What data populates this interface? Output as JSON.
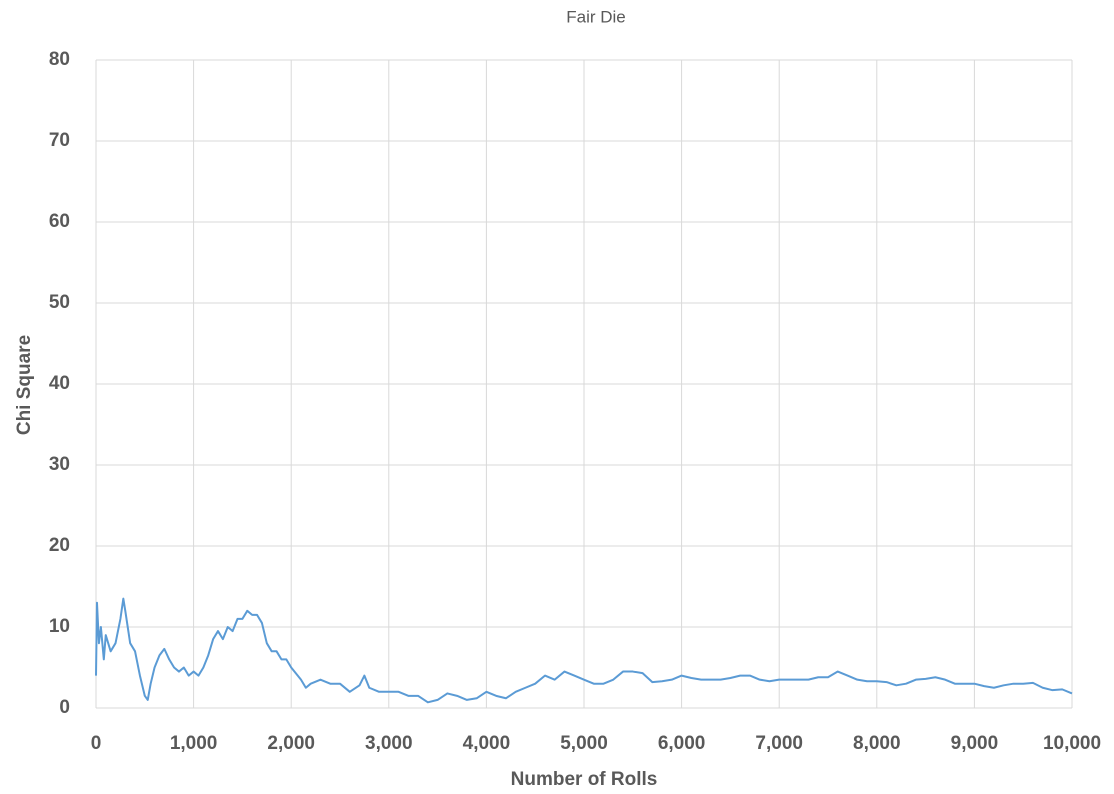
{
  "chart_data": {
    "type": "line",
    "title": "Fair Die",
    "x_label": "Number of Rolls",
    "y_label": "Chi Square",
    "color": "#5b9bd5",
    "grid": true,
    "xlim": [
      0,
      10000
    ],
    "ylim": [
      0,
      80
    ],
    "xticks": [
      0,
      {
        "value": 1000,
        "label": "1,000"
      },
      {
        "value": 2000,
        "label": "2,000"
      },
      {
        "value": 3000,
        "label": "3,000"
      },
      {
        "value": 4000,
        "label": "4,000"
      },
      {
        "value": 5000,
        "label": "5,000"
      },
      {
        "value": 6000,
        "label": "6,000"
      },
      {
        "value": 7000,
        "label": "7,000"
      },
      {
        "value": 8000,
        "label": "8,000"
      },
      {
        "value": 9000,
        "label": "9,000"
      },
      {
        "value": 10000,
        "label": "10,000"
      }
    ],
    "yticks": [
      0,
      10,
      20,
      30,
      40,
      50,
      60,
      70,
      80
    ],
    "x": [
      0,
      10,
      30,
      50,
      80,
      100,
      150,
      200,
      250,
      280,
      300,
      350,
      400,
      450,
      500,
      530,
      560,
      600,
      650,
      700,
      750,
      800,
      850,
      900,
      950,
      1000,
      1050,
      1100,
      1150,
      1200,
      1250,
      1300,
      1350,
      1400,
      1450,
      1500,
      1550,
      1600,
      1650,
      1700,
      1750,
      1800,
      1850,
      1900,
      1950,
      2000,
      2100,
      2150,
      2200,
      2300,
      2400,
      2500,
      2600,
      2700,
      2750,
      2800,
      2900,
      3000,
      3100,
      3200,
      3300,
      3400,
      3500,
      3600,
      3700,
      3800,
      3900,
      4000,
      4100,
      4200,
      4300,
      4400,
      4500,
      4600,
      4700,
      4800,
      4900,
      5000,
      5100,
      5200,
      5300,
      5400,
      5500,
      5600,
      5700,
      5800,
      5900,
      6000,
      6100,
      6200,
      6300,
      6400,
      6500,
      6600,
      6700,
      6800,
      6900,
      7000,
      7100,
      7200,
      7300,
      7400,
      7500,
      7600,
      7700,
      7800,
      7900,
      8000,
      8100,
      8200,
      8300,
      8400,
      8500,
      8600,
      8700,
      8800,
      8900,
      9000,
      9100,
      9200,
      9300,
      9400,
      9500,
      9600,
      9700,
      9800,
      9900,
      10000
    ],
    "values": [
      4,
      13,
      8,
      10,
      6,
      9,
      7,
      8,
      11,
      13.5,
      12,
      8,
      7,
      4,
      1.5,
      1,
      3,
      5,
      6.5,
      7.3,
      6,
      5,
      4.5,
      5,
      4,
      4.5,
      4,
      5,
      6.5,
      8.5,
      9.5,
      8.5,
      10,
      9.5,
      11,
      11,
      12,
      11.5,
      11.5,
      10.5,
      8,
      7,
      7,
      6,
      6,
      5,
      3.5,
      2.5,
      3,
      3.5,
      3,
      3,
      2,
      2.8,
      4,
      2.5,
      2,
      2,
      2,
      1.5,
      1.5,
      0.7,
      1,
      1.8,
      1.5,
      1,
      1.2,
      2,
      1.5,
      1.2,
      2,
      2.5,
      3,
      4,
      3.5,
      4.5,
      4,
      3.5,
      3,
      3,
      3.5,
      4.5,
      4.5,
      4.3,
      3.2,
      3.3,
      3.5,
      4,
      3.7,
      3.5,
      3.5,
      3.5,
      3.7,
      4,
      4,
      3.5,
      3.3,
      3.5,
      3.5,
      3.5,
      3.5,
      3.8,
      3.8,
      4.5,
      4,
      3.5,
      3.3,
      3.3,
      3.2,
      2.8,
      3,
      3.5,
      3.6,
      3.8,
      3.5,
      3,
      3,
      3,
      2.7,
      2.5,
      2.8,
      3,
      3,
      3.1,
      2.5,
      2.2,
      2.3,
      1.8
    ]
  }
}
